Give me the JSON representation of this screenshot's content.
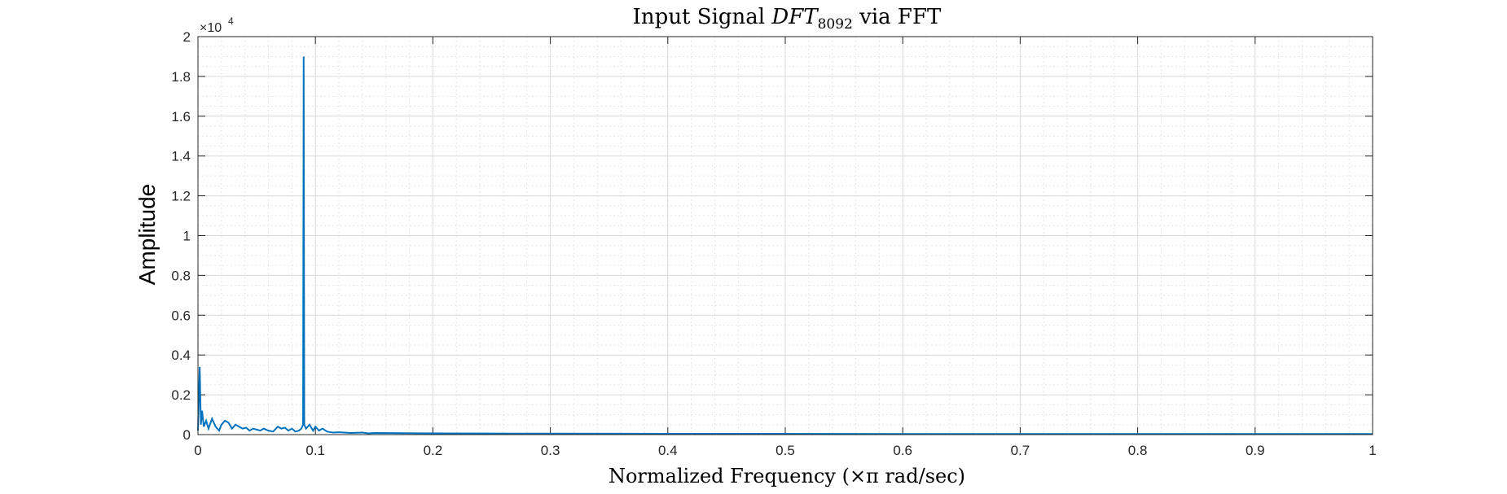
{
  "chart_data": {
    "type": "line",
    "title_parts": {
      "prefix": "Input Signal ",
      "main": "DFT",
      "subscript": "8092",
      "suffix": " via FFT"
    },
    "xlabel": "Normalized Frequency (×π rad/sec)",
    "ylabel": "Amplitude",
    "y_exponent_base": "×10",
    "y_exponent_power": "4",
    "xlim": [
      0,
      1
    ],
    "ylim": [
      0,
      2
    ],
    "xticks": [
      0,
      0.1,
      0.2,
      0.3,
      0.4,
      0.5,
      0.6,
      0.7,
      0.8,
      0.9,
      1
    ],
    "xtick_labels": [
      "0",
      "0.1",
      "0.2",
      "0.3",
      "0.4",
      "0.5",
      "0.6",
      "0.7",
      "0.8",
      "0.9",
      "1"
    ],
    "yticks": [
      0,
      0.2,
      0.4,
      0.6,
      0.8,
      1,
      1.2,
      1.4,
      1.6,
      1.8,
      2
    ],
    "ytick_labels": [
      "0",
      "0.2",
      "0.4",
      "0.6",
      "0.8",
      "1",
      "1.2",
      "1.4",
      "1.6",
      "1.8",
      "2"
    ],
    "grid": true,
    "minor_grid": true,
    "series": [
      {
        "color": "#0072BD",
        "x": [
          0,
          0.0015,
          0.0025,
          0.0035,
          0.005,
          0.007,
          0.009,
          0.012,
          0.015,
          0.018,
          0.02,
          0.023,
          0.026,
          0.029,
          0.032,
          0.035,
          0.038,
          0.041,
          0.044,
          0.047,
          0.05,
          0.053,
          0.056,
          0.06,
          0.064,
          0.068,
          0.071,
          0.074,
          0.077,
          0.08,
          0.083,
          0.086,
          0.088,
          0.0895,
          0.09,
          0.0905,
          0.092,
          0.095,
          0.098,
          0.1,
          0.103,
          0.106,
          0.11,
          0.115,
          0.12,
          0.13,
          0.14,
          0.145,
          0.15,
          0.2,
          0.3,
          0.4,
          0.5,
          0.6,
          0.7,
          0.8,
          0.9,
          1
        ],
        "y": [
          0.02,
          0.34,
          0.05,
          0.12,
          0.04,
          0.07,
          0.03,
          0.08,
          0.04,
          0.02,
          0.05,
          0.07,
          0.06,
          0.03,
          0.05,
          0.04,
          0.03,
          0.035,
          0.02,
          0.03,
          0.025,
          0.02,
          0.03,
          0.02,
          0.015,
          0.04,
          0.03,
          0.035,
          0.02,
          0.03,
          0.015,
          0.02,
          0.03,
          0.05,
          1.9,
          0.05,
          0.03,
          0.05,
          0.02,
          0.04,
          0.02,
          0.03,
          0.015,
          0.01,
          0.012,
          0.008,
          0.01,
          0.006,
          0.008,
          0.006,
          0.005,
          0.004,
          0.004,
          0.003,
          0.003,
          0.003,
          0.003,
          0.003
        ]
      }
    ]
  }
}
